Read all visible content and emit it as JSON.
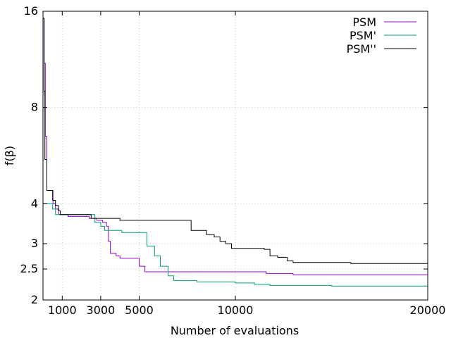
{
  "chart_data": {
    "type": "line",
    "xlabel": "Number of evaluations",
    "ylabel": "f(β)",
    "xlim": [
      0,
      20000
    ],
    "ylim": [
      2,
      16
    ],
    "y_scale": "log2",
    "x_ticks": [
      1000,
      3000,
      5000,
      10000,
      20000
    ],
    "x_tick_labels": [
      "1000",
      "3000",
      "5000",
      "10000",
      "20000"
    ],
    "y_ticks": [
      2,
      2.5,
      3,
      4,
      8,
      16
    ],
    "y_tick_labels": [
      "2",
      "2.5",
      "3",
      "4",
      "8",
      "16"
    ],
    "grid": true,
    "legend_position": "top-right",
    "series": [
      {
        "name": "PSM",
        "color": "#9400d3",
        "points": [
          [
            0,
            15.2
          ],
          [
            60,
            11
          ],
          [
            120,
            6.5
          ],
          [
            200,
            4.4
          ],
          [
            450,
            4.4
          ],
          [
            520,
            4.0
          ],
          [
            650,
            3.85
          ],
          [
            820,
            3.7
          ],
          [
            1100,
            3.7
          ],
          [
            1300,
            3.65
          ],
          [
            2400,
            3.6
          ],
          [
            2800,
            3.55
          ],
          [
            3100,
            3.5
          ],
          [
            3300,
            3.4
          ],
          [
            3400,
            3.05
          ],
          [
            3500,
            2.8
          ],
          [
            3800,
            2.75
          ],
          [
            4000,
            2.7
          ],
          [
            4700,
            2.7
          ],
          [
            5000,
            2.55
          ],
          [
            5200,
            2.55
          ],
          [
            5300,
            2.45
          ],
          [
            11000,
            2.45
          ],
          [
            11600,
            2.42
          ],
          [
            13000,
            2.4
          ],
          [
            20000,
            2.4
          ]
        ]
      },
      {
        "name": "PSM'",
        "color": "#009e73",
        "points": [
          [
            0,
            4.0
          ],
          [
            300,
            4.0
          ],
          [
            500,
            3.85
          ],
          [
            650,
            3.7
          ],
          [
            2000,
            3.7
          ],
          [
            2500,
            3.7
          ],
          [
            2700,
            3.5
          ],
          [
            3000,
            3.4
          ],
          [
            3200,
            3.3
          ],
          [
            3800,
            3.3
          ],
          [
            4100,
            3.25
          ],
          [
            5300,
            3.25
          ],
          [
            5400,
            2.95
          ],
          [
            5800,
            2.75
          ],
          [
            6100,
            2.55
          ],
          [
            6500,
            2.38
          ],
          [
            6800,
            2.3
          ],
          [
            7200,
            2.3
          ],
          [
            8000,
            2.28
          ],
          [
            10000,
            2.26
          ],
          [
            11000,
            2.24
          ],
          [
            11800,
            2.22
          ],
          [
            12500,
            2.22
          ],
          [
            15000,
            2.21
          ],
          [
            20000,
            2.2
          ]
        ]
      },
      {
        "name": "PSM''",
        "color": "#000000",
        "points": [
          [
            0,
            15.2
          ],
          [
            60,
            9
          ],
          [
            100,
            5.5
          ],
          [
            200,
            4.4
          ],
          [
            400,
            4.4
          ],
          [
            500,
            4.1
          ],
          [
            650,
            3.95
          ],
          [
            800,
            3.8
          ],
          [
            900,
            3.7
          ],
          [
            2500,
            3.6
          ],
          [
            2700,
            3.6
          ],
          [
            3600,
            3.6
          ],
          [
            4000,
            3.55
          ],
          [
            7500,
            3.55
          ],
          [
            7700,
            3.3
          ],
          [
            8300,
            3.3
          ],
          [
            8500,
            3.2
          ],
          [
            8900,
            3.15
          ],
          [
            9200,
            3.05
          ],
          [
            9500,
            3.0
          ],
          [
            9800,
            2.9
          ],
          [
            10700,
            2.9
          ],
          [
            11500,
            2.88
          ],
          [
            11800,
            2.75
          ],
          [
            12200,
            2.72
          ],
          [
            12700,
            2.65
          ],
          [
            13000,
            2.62
          ],
          [
            14500,
            2.62
          ],
          [
            16000,
            2.6
          ],
          [
            20000,
            2.6
          ]
        ]
      }
    ]
  }
}
